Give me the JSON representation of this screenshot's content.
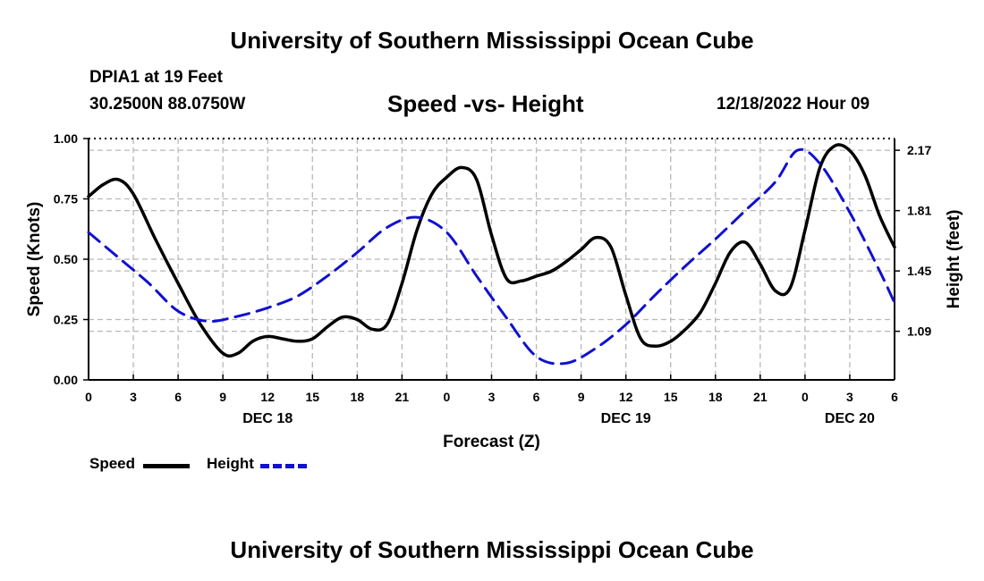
{
  "header": {
    "title": "University of Southern Mississippi Ocean Cube",
    "station": "DPIA1 at 19 Feet",
    "coordinates": "30.2500N  88.0750W",
    "date": "12/18/2022 Hour 09",
    "footer_title": "University of Southern Mississippi Ocean Cube"
  },
  "chart_data": {
    "type": "line",
    "title": "Speed -vs- Height",
    "xlabel": "Forecast (Z)",
    "ylabel": "Speed (Knots)",
    "y2label": "Height (feet)",
    "xlim": [
      0,
      54
    ],
    "ylim": [
      0,
      1
    ],
    "y2lim": [
      0.8,
      2.24
    ],
    "x_ticks": [
      0,
      3,
      6,
      9,
      12,
      15,
      18,
      21,
      24,
      27,
      30,
      33,
      36,
      39,
      42,
      45,
      48,
      51,
      54
    ],
    "x_tick_labels": [
      "0",
      "3",
      "6",
      "9",
      "12",
      "15",
      "18",
      "21",
      "0",
      "3",
      "6",
      "9",
      "12",
      "15",
      "18",
      "21",
      "0",
      "3",
      "6"
    ],
    "day_labels": [
      {
        "x": 12,
        "label": "DEC 18"
      },
      {
        "x": 36,
        "label": "DEC 19"
      },
      {
        "x": 51,
        "label": "DEC 20"
      }
    ],
    "y_ticks": [
      0,
      0.25,
      0.5,
      0.75,
      1.0
    ],
    "y_tick_labels": [
      "0.00",
      "0.25",
      "0.50",
      "0.75",
      "1.00"
    ],
    "y2_ticks": [
      1.09,
      1.45,
      1.81,
      2.17
    ],
    "y2_tick_labels": [
      "1.09",
      "1.45",
      "1.81",
      "2.17"
    ],
    "grid": true,
    "legend": [
      {
        "name": "Speed",
        "color": "#000000",
        "style": "solid"
      },
      {
        "name": "Height",
        "color": "#1010d0",
        "style": "dashed"
      }
    ],
    "series": [
      {
        "name": "Speed",
        "axis": "left",
        "color": "#000000",
        "x": [
          0,
          1,
          2,
          3,
          4.5,
          6,
          7.5,
          9,
          10,
          11,
          12,
          13,
          14,
          15,
          16,
          17,
          18,
          19,
          20,
          21,
          22,
          23,
          24,
          25,
          26,
          27,
          28,
          29,
          30,
          31,
          32,
          33,
          34,
          35,
          36,
          37,
          38,
          39,
          40,
          41,
          42,
          43,
          44,
          45,
          46,
          47,
          48,
          49,
          50,
          51,
          52,
          53,
          54
        ],
        "y": [
          0.76,
          0.81,
          0.83,
          0.77,
          0.58,
          0.4,
          0.23,
          0.11,
          0.11,
          0.16,
          0.18,
          0.17,
          0.16,
          0.17,
          0.22,
          0.26,
          0.25,
          0.21,
          0.23,
          0.4,
          0.62,
          0.77,
          0.84,
          0.88,
          0.83,
          0.6,
          0.42,
          0.41,
          0.43,
          0.45,
          0.49,
          0.54,
          0.59,
          0.55,
          0.35,
          0.17,
          0.14,
          0.16,
          0.21,
          0.28,
          0.4,
          0.53,
          0.57,
          0.48,
          0.37,
          0.38,
          0.62,
          0.88,
          0.97,
          0.95,
          0.85,
          0.68,
          0.55
        ]
      },
      {
        "name": "Height",
        "axis": "right",
        "color": "#1010d0",
        "x": [
          0,
          2,
          4,
          6,
          8,
          10,
          12,
          14,
          16,
          18,
          20,
          22,
          24,
          26,
          28,
          30,
          32,
          34,
          36,
          38,
          40,
          42,
          44,
          46,
          47.5,
          49,
          51,
          53,
          54
        ],
        "y": [
          1.68,
          1.53,
          1.38,
          1.21,
          1.15,
          1.18,
          1.23,
          1.3,
          1.42,
          1.56,
          1.71,
          1.77,
          1.68,
          1.42,
          1.17,
          0.94,
          0.9,
          0.99,
          1.13,
          1.31,
          1.48,
          1.64,
          1.81,
          1.98,
          2.17,
          2.09,
          1.8,
          1.45,
          1.26
        ]
      }
    ]
  }
}
